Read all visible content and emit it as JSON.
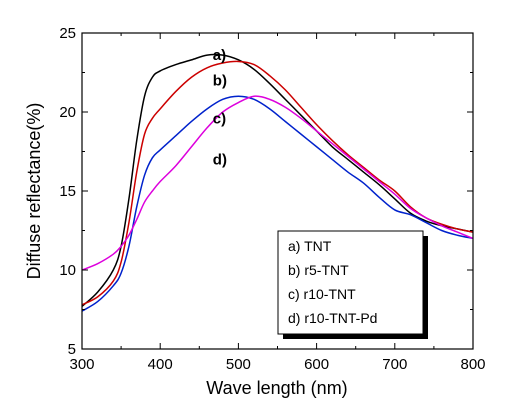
{
  "chart_data": {
    "type": "line",
    "xlabel": "Wave length (nm)",
    "ylabel": "Diffuse reflectance(%)",
    "xlim": [
      300,
      800
    ],
    "ylim": [
      5,
      25
    ],
    "xticks": [
      "300",
      "400",
      "500",
      "600",
      "700",
      "800"
    ],
    "yticks": [
      "5",
      "10",
      "15",
      "20",
      "25"
    ],
    "grid": false,
    "legend_position": "bottom-right",
    "legend": [
      "a) TNT",
      "b) r5-TNT",
      "c) r10-TNT",
      "d) r10-TNT-Pd"
    ],
    "annotations": [
      {
        "text": "a)",
        "x": 512,
        "y": 23.6
      },
      {
        "text": "b)",
        "x": 512,
        "y": 22.0
      },
      {
        "text": "c)",
        "x": 512,
        "y": 19.6
      },
      {
        "text": "d)",
        "x": 512,
        "y": 17.0
      }
    ],
    "series": [
      {
        "name": "a) TNT",
        "color": "#000000",
        "x": [
          300,
          320,
          340,
          350,
          360,
          370,
          380,
          390,
          400,
          420,
          440,
          460,
          480,
          500,
          520,
          540,
          560,
          580,
          600,
          620,
          640,
          660,
          680,
          700,
          720,
          740,
          760,
          780,
          800
        ],
        "y": [
          7.7,
          8.6,
          10.0,
          11.5,
          14.5,
          18.2,
          21.0,
          22.2,
          22.6,
          23.0,
          23.3,
          23.6,
          23.6,
          23.3,
          22.7,
          21.8,
          20.8,
          19.8,
          18.8,
          17.8,
          17.0,
          16.2,
          15.4,
          14.5,
          13.6,
          13.1,
          12.8,
          12.6,
          12.4
        ]
      },
      {
        "name": "b) r5-TNT",
        "color": "#cc0000",
        "x": [
          300,
          320,
          340,
          350,
          360,
          370,
          380,
          390,
          400,
          420,
          440,
          460,
          480,
          500,
          520,
          540,
          560,
          580,
          600,
          620,
          640,
          660,
          680,
          700,
          720,
          740,
          760,
          780,
          800
        ],
        "y": [
          7.8,
          8.3,
          9.3,
          10.5,
          13.0,
          16.2,
          18.6,
          19.6,
          20.2,
          21.3,
          22.2,
          22.8,
          23.1,
          23.2,
          23.0,
          22.3,
          21.4,
          20.3,
          19.2,
          18.2,
          17.3,
          16.5,
          15.7,
          15.0,
          14.0,
          13.3,
          12.9,
          12.6,
          12.4
        ]
      },
      {
        "name": "c) r10-TNT",
        "color": "#0022cc",
        "x": [
          300,
          320,
          340,
          350,
          360,
          370,
          380,
          390,
          400,
          420,
          440,
          460,
          480,
          500,
          520,
          540,
          560,
          580,
          600,
          620,
          640,
          660,
          680,
          700,
          720,
          740,
          760,
          780,
          800
        ],
        "y": [
          7.4,
          8.0,
          9.0,
          9.8,
          11.5,
          14.0,
          16.0,
          17.1,
          17.6,
          18.5,
          19.4,
          20.2,
          20.8,
          21.0,
          20.8,
          20.2,
          19.4,
          18.6,
          17.8,
          17.0,
          16.2,
          15.5,
          14.6,
          13.8,
          13.5,
          13.0,
          12.5,
          12.2,
          12.0
        ]
      },
      {
        "name": "d) r10-TNT-Pd",
        "color": "#dd00dd",
        "x": [
          300,
          320,
          340,
          350,
          360,
          370,
          380,
          390,
          400,
          420,
          440,
          460,
          480,
          500,
          520,
          540,
          560,
          580,
          600,
          620,
          640,
          660,
          680,
          700,
          720,
          740,
          760,
          780,
          800
        ],
        "y": [
          10.0,
          10.4,
          11.0,
          11.5,
          12.2,
          13.2,
          14.3,
          15.0,
          15.6,
          16.6,
          17.8,
          19.0,
          20.0,
          20.6,
          21.0,
          20.8,
          20.3,
          19.6,
          18.8,
          18.0,
          17.2,
          16.4,
          15.6,
          14.8,
          13.9,
          13.3,
          12.8,
          12.4,
          12.0
        ]
      }
    ]
  }
}
